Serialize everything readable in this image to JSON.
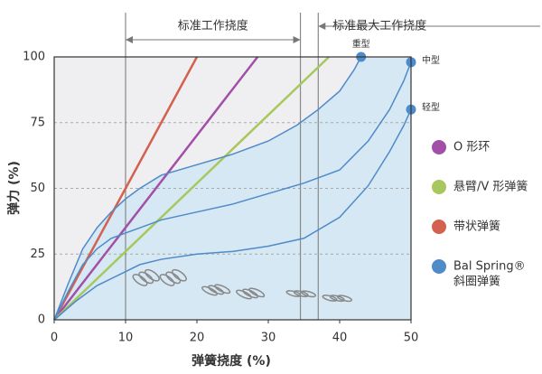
{
  "chart_data": {
    "type": "line",
    "xlabel": "弹簧挠度 (%)",
    "ylabel": "弹力 (%)",
    "xlim": [
      0,
      50
    ],
    "xticks": [
      0,
      10,
      20,
      30,
      40,
      50
    ],
    "ylim": [
      0,
      100
    ],
    "yticks": [
      0,
      25,
      50,
      75,
      100
    ],
    "grid": true,
    "series": [
      {
        "name": "带状弹簧",
        "color": "#d4604f",
        "x": [
          0,
          20
        ],
        "values": [
          0,
          100
        ]
      },
      {
        "name": "O 形环",
        "color": "#a24fa8",
        "x": [
          0,
          28.5
        ],
        "values": [
          0,
          100
        ]
      },
      {
        "name": "悬臂/V 形弹簧",
        "color": "#a8c75c",
        "x": [
          0,
          38.5
        ],
        "values": [
          0,
          100
        ]
      },
      {
        "name": "重型",
        "color": "#4f8ac9",
        "endpoint": true,
        "x": [
          0,
          2,
          4,
          6,
          8,
          10,
          12,
          15,
          20,
          25,
          30,
          34,
          37,
          40,
          42,
          43
        ],
        "values": [
          0,
          14,
          27,
          35,
          41,
          46,
          50,
          55,
          59,
          63,
          68,
          74,
          80,
          87,
          95,
          100
        ]
      },
      {
        "name": "中型",
        "color": "#4f8ac9",
        "endpoint": true,
        "x": [
          0,
          2,
          4,
          6,
          8,
          10,
          12,
          15,
          20,
          25,
          30,
          35,
          40,
          44,
          47,
          49,
          50
        ],
        "values": [
          0,
          11,
          21,
          27,
          31,
          33,
          35,
          38,
          41,
          44,
          48,
          52,
          57,
          68,
          80,
          91,
          98
        ]
      },
      {
        "name": "轻型",
        "color": "#4f8ac9",
        "endpoint": true,
        "x": [
          0,
          3,
          6,
          9,
          12,
          15,
          20,
          25,
          30,
          35,
          40,
          44,
          47,
          49,
          50
        ],
        "values": [
          0,
          7,
          13,
          17,
          21,
          23,
          25,
          26,
          28,
          31,
          39,
          51,
          64,
          74,
          80
        ]
      }
    ],
    "ranges": [
      {
        "text": "标准工作挠度",
        "from": 10,
        "to": 34.5
      },
      {
        "text": "标准最大工作挠度",
        "from": 37
      }
    ],
    "legend": [
      {
        "label": "O 形环",
        "color": "#a24fa8"
      },
      {
        "label": "悬臂/V 形弹簧",
        "color": "#a8c75c"
      },
      {
        "label": "带状弹簧",
        "color": "#d4604f"
      },
      {
        "label": "Bal Spring®",
        "label2": "斜圈弹簧",
        "color": "#4f8ac9"
      }
    ]
  }
}
